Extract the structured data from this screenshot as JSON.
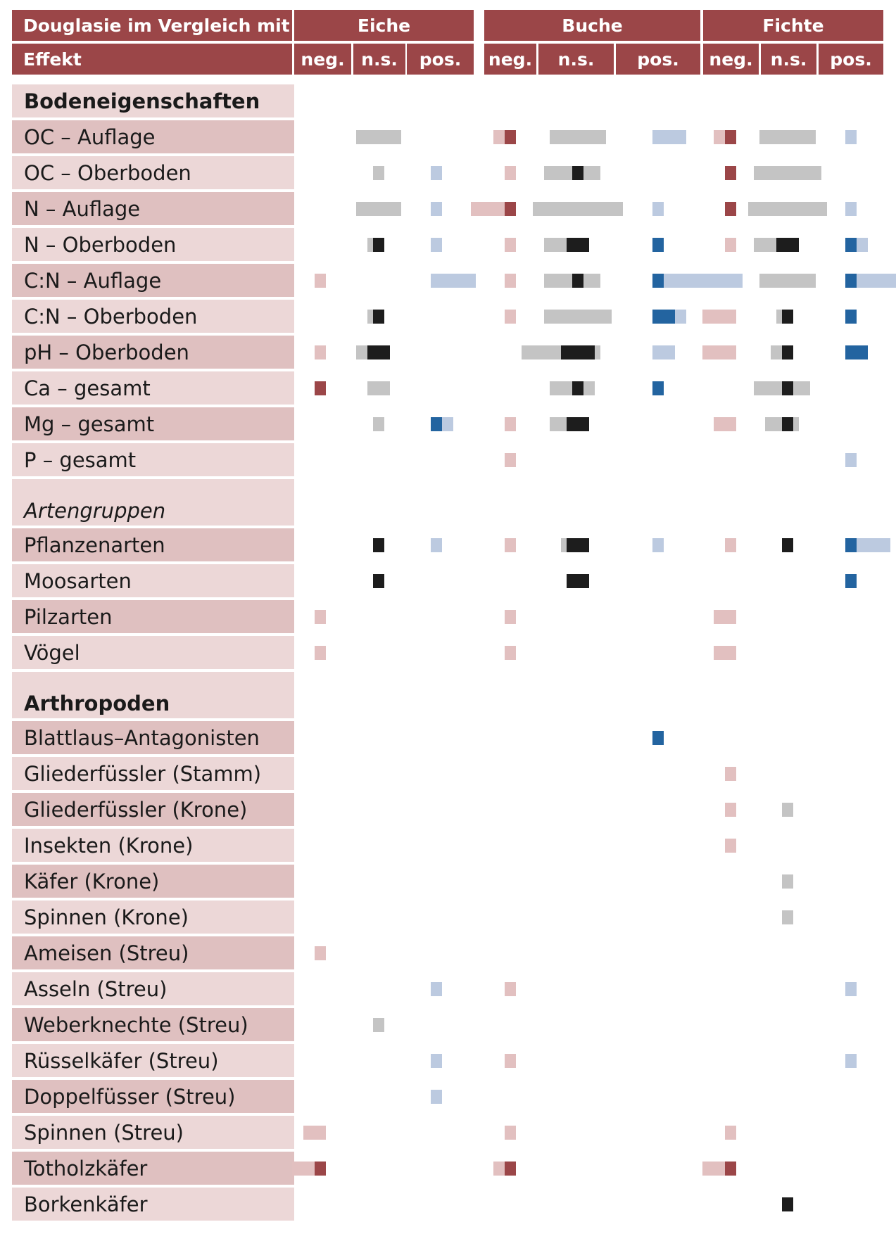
{
  "colors": {
    "header_bg": "#9b4648",
    "row_light": "#ecd7d7",
    "row_dark": "#dfc0c0",
    "neg_light": "#e2c0c0",
    "neg_dark": "#9b4648",
    "ns_light": "#c4c4c4",
    "ns_dark": "#1d1d1d",
    "pos_light": "#bccae0",
    "pos_dark": "#2364a0"
  },
  "header": {
    "title_top": "Douglasie im Vergleich mit",
    "title_bottom": "Effekt",
    "groups": [
      "Eiche",
      "Buche",
      "Fichte"
    ],
    "sublabels": [
      "neg.",
      "n.s.",
      "pos.",
      "neg.",
      "n.s.",
      "pos.",
      "neg.",
      "n.s.",
      "pos."
    ]
  },
  "rows": [
    {
      "label": "Bodeneigenschaften",
      "kind": "section"
    },
    {
      "label": "OC – Auflage",
      "kind": "data"
    },
    {
      "label": "OC – Oberboden",
      "kind": "data"
    },
    {
      "label": "N – Auflage",
      "kind": "data"
    },
    {
      "label": "N – Oberboden",
      "kind": "data"
    },
    {
      "label": "C:N – Auflage",
      "kind": "data"
    },
    {
      "label": "C:N – Oberboden",
      "kind": "data"
    },
    {
      "label": "pH – Oberboden",
      "kind": "data"
    },
    {
      "label": "Ca – gesamt",
      "kind": "data"
    },
    {
      "label": "Mg – gesamt",
      "kind": "data"
    },
    {
      "label": "P – gesamt",
      "kind": "data"
    },
    {
      "label": "Artengruppen",
      "kind": "group-italic"
    },
    {
      "label": "Pflanzenarten",
      "kind": "data"
    },
    {
      "label": "Moosarten",
      "kind": "data"
    },
    {
      "label": "Pilzarten",
      "kind": "data"
    },
    {
      "label": "Vögel",
      "kind": "data"
    },
    {
      "label": "Arthropoden",
      "kind": "group-bold"
    },
    {
      "label": "Blattlaus–Antagonisten",
      "kind": "data"
    },
    {
      "label": "Gliederfüssler (Stamm)",
      "kind": "data"
    },
    {
      "label": "Gliederfüssler (Krone)",
      "kind": "data"
    },
    {
      "label": "Insekten (Krone)",
      "kind": "data"
    },
    {
      "label": "Käfer (Krone)",
      "kind": "data"
    },
    {
      "label": "Spinnen (Krone)",
      "kind": "data"
    },
    {
      "label": "Ameisen (Streu)",
      "kind": "data"
    },
    {
      "label": "Asseln (Streu)",
      "kind": "data"
    },
    {
      "label": "Weberknechte (Streu)",
      "kind": "data"
    },
    {
      "label": "Rüsselkäfer (Streu)",
      "kind": "data"
    },
    {
      "label": "Doppelfüsser (Streu)",
      "kind": "data"
    },
    {
      "label": "Spinnen (Streu)",
      "kind": "data"
    },
    {
      "label": "Totholzkäfer",
      "kind": "data"
    },
    {
      "label": "Borkenkäfer",
      "kind": "data"
    }
  ],
  "chart_data": {
    "type": "heatmap",
    "columns": [
      "Eiche neg.",
      "Eiche n.s.",
      "Eiche pos.",
      "Buche neg.",
      "Buche n.s.",
      "Buche pos.",
      "Fichte neg.",
      "Fichte n.s.",
      "Fichte pos."
    ],
    "marks": [
      {
        "row": "OC – Auflage",
        "col": "Eiche n.s.",
        "strong": 0,
        "weak": 4
      },
      {
        "row": "OC – Auflage",
        "col": "Buche neg.",
        "strong": 1,
        "weak": 1
      },
      {
        "row": "OC – Auflage",
        "col": "Buche n.s.",
        "strong": 0,
        "weak": 5
      },
      {
        "row": "OC – Auflage",
        "col": "Buche pos.",
        "strong": 0,
        "weak": 3
      },
      {
        "row": "OC – Auflage",
        "col": "Fichte neg.",
        "strong": 1,
        "weak": 1
      },
      {
        "row": "OC – Auflage",
        "col": "Fichte n.s.",
        "strong": 0,
        "weak": 5
      },
      {
        "row": "OC – Auflage",
        "col": "Fichte pos.",
        "strong": 0,
        "weak": 1
      },
      {
        "row": "OC – Oberboden",
        "col": "Eiche n.s.",
        "strong": 0,
        "weak": 1
      },
      {
        "row": "OC – Oberboden",
        "col": "Eiche pos.",
        "strong": 0,
        "weak": 1
      },
      {
        "row": "OC – Oberboden",
        "col": "Buche neg.",
        "strong": 0,
        "weak": 1
      },
      {
        "row": "OC – Oberboden",
        "col": "Buche n.s.",
        "strong": 1,
        "weak": 5
      },
      {
        "row": "OC – Oberboden",
        "col": "Fichte neg.",
        "strong": 1,
        "weak": 0
      },
      {
        "row": "OC – Oberboden",
        "col": "Fichte n.s.",
        "strong": 0,
        "weak": 6
      },
      {
        "row": "N – Auflage",
        "col": "Eiche n.s.",
        "strong": 0,
        "weak": 4
      },
      {
        "row": "N – Auflage",
        "col": "Eiche pos.",
        "strong": 0,
        "weak": 1
      },
      {
        "row": "N – Auflage",
        "col": "Buche neg.",
        "strong": 1,
        "weak": 3
      },
      {
        "row": "N – Auflage",
        "col": "Buche n.s.",
        "strong": 0,
        "weak": 8
      },
      {
        "row": "N – Auflage",
        "col": "Buche pos.",
        "strong": 0,
        "weak": 1
      },
      {
        "row": "N – Auflage",
        "col": "Fichte neg.",
        "strong": 1,
        "weak": 0
      },
      {
        "row": "N – Auflage",
        "col": "Fichte n.s.",
        "strong": 0,
        "weak": 7
      },
      {
        "row": "N – Auflage",
        "col": "Fichte pos.",
        "strong": 0,
        "weak": 1
      },
      {
        "row": "N – Oberboden",
        "col": "Eiche n.s.",
        "strong": 1,
        "weak": 1
      },
      {
        "row": "N – Oberboden",
        "col": "Eiche pos.",
        "strong": 0,
        "weak": 1
      },
      {
        "row": "N – Oberboden",
        "col": "Buche neg.",
        "strong": 0,
        "weak": 1
      },
      {
        "row": "N – Oberboden",
        "col": "Buche n.s.",
        "strong": 2,
        "weak": 4
      },
      {
        "row": "N – Oberboden",
        "col": "Buche pos.",
        "strong": 1,
        "weak": 0
      },
      {
        "row": "N – Oberboden",
        "col": "Fichte neg.",
        "strong": 0,
        "weak": 1
      },
      {
        "row": "N – Oberboden",
        "col": "Fichte n.s.",
        "strong": 2,
        "weak": 4
      },
      {
        "row": "N – Oberboden",
        "col": "Fichte pos.",
        "strong": 1,
        "weak": 1
      },
      {
        "row": "C:N – Auflage",
        "col": "Eiche neg.",
        "strong": 0,
        "weak": 1
      },
      {
        "row": "C:N – Auflage",
        "col": "Eiche pos.",
        "strong": 0,
        "weak": 4
      },
      {
        "row": "C:N – Auflage",
        "col": "Buche neg.",
        "strong": 0,
        "weak": 1
      },
      {
        "row": "C:N – Auflage",
        "col": "Buche n.s.",
        "strong": 1,
        "weak": 5
      },
      {
        "row": "C:N – Auflage",
        "col": "Buche pos.",
        "strong": 1,
        "weak": 7
      },
      {
        "row": "C:N – Auflage",
        "col": "Fichte n.s.",
        "strong": 0,
        "weak": 5
      },
      {
        "row": "C:N – Auflage",
        "col": "Fichte pos.",
        "strong": 1,
        "weak": 4
      },
      {
        "row": "C:N – Oberboden",
        "col": "Eiche n.s.",
        "strong": 1,
        "weak": 1
      },
      {
        "row": "C:N – Oberboden",
        "col": "Buche neg.",
        "strong": 0,
        "weak": 1
      },
      {
        "row": "C:N – Oberboden",
        "col": "Buche n.s.",
        "strong": 0,
        "weak": 6
      },
      {
        "row": "C:N – Oberboden",
        "col": "Buche pos.",
        "strong": 2,
        "weak": 1
      },
      {
        "row": "C:N – Oberboden",
        "col": "Fichte neg.",
        "strong": 0,
        "weak": 3
      },
      {
        "row": "C:N – Oberboden",
        "col": "Fichte n.s.",
        "strong": 1,
        "weak": 1
      },
      {
        "row": "C:N – Oberboden",
        "col": "Fichte pos.",
        "strong": 1,
        "weak": 0
      },
      {
        "row": "pH – Oberboden",
        "col": "Eiche neg.",
        "strong": 0,
        "weak": 1
      },
      {
        "row": "pH – Oberboden",
        "col": "Eiche n.s.",
        "strong": 2,
        "weak": 2
      },
      {
        "row": "pH – Oberboden",
        "col": "Buche n.s.",
        "strong": 3,
        "weak": 7
      },
      {
        "row": "pH – Oberboden",
        "col": "Buche pos.",
        "strong": 0,
        "weak": 2
      },
      {
        "row": "pH – Oberboden",
        "col": "Fichte neg.",
        "strong": 0,
        "weak": 3
      },
      {
        "row": "pH – Oberboden",
        "col": "Fichte n.s.",
        "strong": 1,
        "weak": 2
      },
      {
        "row": "pH – Oberboden",
        "col": "Fichte pos.",
        "strong": 2,
        "weak": 0
      },
      {
        "row": "Ca – gesamt",
        "col": "Eiche neg.",
        "strong": 1,
        "weak": 0
      },
      {
        "row": "Ca – gesamt",
        "col": "Eiche n.s.",
        "strong": 0,
        "weak": 2
      },
      {
        "row": "Ca – gesamt",
        "col": "Buche n.s.",
        "strong": 1,
        "weak": 4
      },
      {
        "row": "Ca – gesamt",
        "col": "Buche pos.",
        "strong": 1,
        "weak": 0
      },
      {
        "row": "Ca – gesamt",
        "col": "Fichte n.s.",
        "strong": 1,
        "weak": 5
      },
      {
        "row": "Mg – gesamt",
        "col": "Eiche n.s.",
        "strong": 0,
        "weak": 1
      },
      {
        "row": "Mg – gesamt",
        "col": "Eiche pos.",
        "strong": 1,
        "weak": 1
      },
      {
        "row": "Mg – gesamt",
        "col": "Buche neg.",
        "strong": 0,
        "weak": 1
      },
      {
        "row": "Mg – gesamt",
        "col": "Buche n.s.",
        "strong": 2,
        "weak": 3
      },
      {
        "row": "Mg – gesamt",
        "col": "Fichte neg.",
        "strong": 0,
        "weak": 2
      },
      {
        "row": "Mg – gesamt",
        "col": "Fichte n.s.",
        "strong": 1,
        "weak": 3
      },
      {
        "row": "P – gesamt",
        "col": "Buche neg.",
        "strong": 0,
        "weak": 1
      },
      {
        "row": "P – gesamt",
        "col": "Fichte pos.",
        "strong": 0,
        "weak": 1
      },
      {
        "row": "Pflanzenarten",
        "col": "Eiche n.s.",
        "strong": 1,
        "weak": 0
      },
      {
        "row": "Pflanzenarten",
        "col": "Eiche pos.",
        "strong": 0,
        "weak": 1
      },
      {
        "row": "Pflanzenarten",
        "col": "Buche neg.",
        "strong": 0,
        "weak": 1
      },
      {
        "row": "Pflanzenarten",
        "col": "Buche n.s.",
        "strong": 2,
        "weak": 1
      },
      {
        "row": "Pflanzenarten",
        "col": "Buche pos.",
        "strong": 0,
        "weak": 1
      },
      {
        "row": "Pflanzenarten",
        "col": "Fichte neg.",
        "strong": 0,
        "weak": 1
      },
      {
        "row": "Pflanzenarten",
        "col": "Fichte n.s.",
        "strong": 1,
        "weak": 0
      },
      {
        "row": "Pflanzenarten",
        "col": "Fichte pos.",
        "strong": 1,
        "weak": 3
      },
      {
        "row": "Moosarten",
        "col": "Eiche n.s.",
        "strong": 1,
        "weak": 0
      },
      {
        "row": "Moosarten",
        "col": "Buche n.s.",
        "strong": 2,
        "weak": 0
      },
      {
        "row": "Moosarten",
        "col": "Fichte pos.",
        "strong": 1,
        "weak": 0
      },
      {
        "row": "Pilzarten",
        "col": "Eiche neg.",
        "strong": 0,
        "weak": 1
      },
      {
        "row": "Pilzarten",
        "col": "Buche neg.",
        "strong": 0,
        "weak": 1
      },
      {
        "row": "Pilzarten",
        "col": "Fichte neg.",
        "strong": 0,
        "weak": 2
      },
      {
        "row": "Vögel",
        "col": "Eiche neg.",
        "strong": 0,
        "weak": 1
      },
      {
        "row": "Vögel",
        "col": "Buche neg.",
        "strong": 0,
        "weak": 1
      },
      {
        "row": "Vögel",
        "col": "Fichte neg.",
        "strong": 0,
        "weak": 2
      },
      {
        "row": "Blattlaus–Antagonisten",
        "col": "Buche pos.",
        "strong": 1,
        "weak": 0
      },
      {
        "row": "Gliederfüssler (Stamm)",
        "col": "Fichte neg.",
        "strong": 0,
        "weak": 1
      },
      {
        "row": "Gliederfüssler (Krone)",
        "col": "Fichte neg.",
        "strong": 0,
        "weak": 1
      },
      {
        "row": "Gliederfüssler (Krone)",
        "col": "Fichte n.s.",
        "strong": 0,
        "weak": 1
      },
      {
        "row": "Insekten (Krone)",
        "col": "Fichte neg.",
        "strong": 0,
        "weak": 1
      },
      {
        "row": "Käfer (Krone)",
        "col": "Fichte n.s.",
        "strong": 0,
        "weak": 1
      },
      {
        "row": "Spinnen (Krone)",
        "col": "Fichte n.s.",
        "strong": 0,
        "weak": 1
      },
      {
        "row": "Ameisen (Streu)",
        "col": "Eiche neg.",
        "strong": 0,
        "weak": 1
      },
      {
        "row": "Asseln (Streu)",
        "col": "Eiche pos.",
        "strong": 0,
        "weak": 1
      },
      {
        "row": "Asseln (Streu)",
        "col": "Buche neg.",
        "strong": 0,
        "weak": 1
      },
      {
        "row": "Asseln (Streu)",
        "col": "Fichte pos.",
        "strong": 0,
        "weak": 1
      },
      {
        "row": "Weberknechte (Streu)",
        "col": "Eiche n.s.",
        "strong": 0,
        "weak": 1
      },
      {
        "row": "Rüsselkäfer (Streu)",
        "col": "Eiche pos.",
        "strong": 0,
        "weak": 1
      },
      {
        "row": "Rüsselkäfer (Streu)",
        "col": "Buche neg.",
        "strong": 0,
        "weak": 1
      },
      {
        "row": "Rüsselkäfer (Streu)",
        "col": "Fichte pos.",
        "strong": 0,
        "weak": 1
      },
      {
        "row": "Doppelfüsser (Streu)",
        "col": "Eiche pos.",
        "strong": 0,
        "weak": 1
      },
      {
        "row": "Spinnen (Streu)",
        "col": "Eiche neg.",
        "strong": 0,
        "weak": 2
      },
      {
        "row": "Spinnen (Streu)",
        "col": "Buche neg.",
        "strong": 0,
        "weak": 1
      },
      {
        "row": "Spinnen (Streu)",
        "col": "Fichte neg.",
        "strong": 0,
        "weak": 1
      },
      {
        "row": "Totholzkäfer",
        "col": "Eiche neg.",
        "strong": 1,
        "weak": 2
      },
      {
        "row": "Totholzkäfer",
        "col": "Buche neg.",
        "strong": 1,
        "weak": 1
      },
      {
        "row": "Totholzkäfer",
        "col": "Fichte neg.",
        "strong": 1,
        "weak": 2
      },
      {
        "row": "Borkenkäfer",
        "col": "Fichte n.s.",
        "strong": 1,
        "weak": 0
      }
    ]
  }
}
